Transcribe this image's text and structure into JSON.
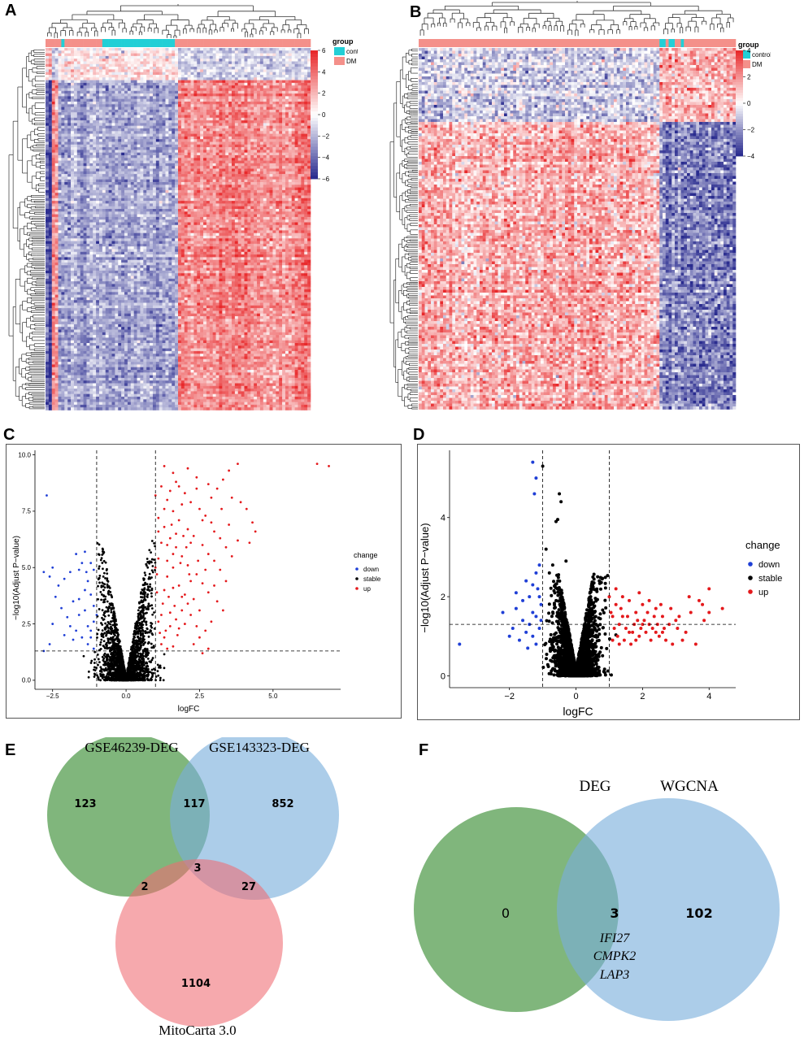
{
  "figure": {
    "panel_letters": [
      "A",
      "B",
      "C",
      "D",
      "E",
      "F"
    ]
  },
  "colors": {
    "heat_low": "#2a2c8f",
    "heat_mid": "#ffffff",
    "heat_high": "#e8292b",
    "control": "#22cfd6",
    "dm": "#f4908a",
    "down": "#1f3fd6",
    "stable": "#000000",
    "up": "#e4191c",
    "venn_green": "#4f9a4a",
    "venn_blue": "#79aedc",
    "venn_red": "#f06b72"
  },
  "heatmap_a": {
    "legend_title": "group",
    "legend_items": [
      "control",
      "DM"
    ],
    "scale_ticks": [
      "6",
      "4",
      "2",
      "0",
      "−2",
      "−4",
      "−6"
    ],
    "group_pattern": [
      0,
      0,
      0,
      0,
      0,
      1,
      0,
      0,
      0,
      0,
      0,
      0,
      0,
      0,
      0,
      0,
      0,
      0,
      1,
      1,
      1,
      1,
      1,
      1,
      1,
      1,
      1,
      1,
      1,
      1,
      1,
      1,
      1,
      1,
      1,
      1,
      1,
      1,
      1,
      1,
      1,
      0,
      0,
      0,
      0,
      0,
      0,
      0,
      0,
      0,
      0,
      0,
      0,
      0,
      0,
      0,
      0,
      0,
      0,
      0,
      0,
      0,
      0,
      0,
      0,
      0,
      0,
      0,
      0,
      0,
      0,
      0,
      0,
      0,
      0,
      0,
      0,
      0,
      0,
      0,
      0,
      0,
      0,
      0
    ]
  },
  "heatmap_b": {
    "legend_title": "group",
    "legend_items": [
      "control",
      "DM"
    ],
    "scale_ticks": [
      "4",
      "2",
      "0",
      "−2",
      "−4"
    ],
    "group_pattern": [
      0,
      0,
      0,
      0,
      0,
      0,
      0,
      0,
      0,
      0,
      0,
      0,
      0,
      0,
      0,
      0,
      0,
      0,
      0,
      0,
      0,
      0,
      0,
      0,
      0,
      0,
      0,
      0,
      0,
      0,
      0,
      0,
      0,
      0,
      0,
      0,
      0,
      0,
      0,
      0,
      0,
      0,
      0,
      0,
      0,
      0,
      0,
      0,
      0,
      0,
      0,
      0,
      0,
      0,
      0,
      0,
      0,
      0,
      0,
      0,
      0,
      0,
      0,
      0,
      0,
      0,
      0,
      0,
      0,
      0,
      0,
      0,
      0,
      0,
      0,
      0,
      0,
      0,
      0,
      1,
      1,
      0,
      1,
      1,
      0,
      0,
      1,
      0,
      0,
      0,
      0,
      0,
      0,
      0,
      0,
      0,
      0,
      0,
      0,
      0,
      0,
      0,
      0,
      0
    ]
  },
  "chart_data": [
    {
      "type": "scatter",
      "panel": "C",
      "title": "",
      "xlabel": "logFC",
      "ylabel": "−log10(Adjust P−value)",
      "xlim": [
        -3.1,
        7.3
      ],
      "ylim": [
        -0.4,
        10.2
      ],
      "x_ticks": [
        -2.5,
        0.0,
        2.5,
        5.0
      ],
      "x_tick_labels": [
        "−2.5",
        "0.0",
        "2.5",
        "5.0"
      ],
      "y_ticks": [
        0.0,
        2.5,
        5.0,
        7.5,
        10.0
      ],
      "y_tick_labels": [
        "0.0",
        "2.5",
        "5.0",
        "7.5",
        "10.0"
      ],
      "v_thresholds": [
        -1,
        1
      ],
      "h_threshold": 1.3,
      "legend_title": "change",
      "legend": [
        "down",
        "stable",
        "up"
      ],
      "stable_cloud": {
        "count": 2400,
        "spread": 1.05,
        "ymax": 6.2
      },
      "down_points": [
        [
          -2.7,
          8.2
        ],
        [
          -2.8,
          4.8
        ],
        [
          -2.5,
          5.0
        ],
        [
          -2.6,
          4.6
        ],
        [
          -2.3,
          4.2
        ],
        [
          -2.1,
          4.5
        ],
        [
          -1.9,
          4.8
        ],
        [
          -1.7,
          5.6
        ],
        [
          -1.6,
          4.9
        ],
        [
          -1.4,
          5.7
        ],
        [
          -1.5,
          5.2
        ],
        [
          -1.3,
          4.4
        ],
        [
          -1.2,
          5.2
        ],
        [
          -1.1,
          4.9
        ],
        [
          -2.4,
          3.7
        ],
        [
          -2.2,
          3.2
        ],
        [
          -2.0,
          2.8
        ],
        [
          -1.8,
          3.5
        ],
        [
          -1.6,
          2.9
        ],
        [
          -1.4,
          3.1
        ],
        [
          -1.3,
          2.4
        ],
        [
          -1.2,
          3.8
        ],
        [
          -1.1,
          2.6
        ],
        [
          -1.7,
          2.2
        ],
        [
          -1.5,
          1.9
        ],
        [
          -1.3,
          1.6
        ],
        [
          -1.2,
          1.9
        ],
        [
          -1.1,
          1.4
        ],
        [
          -2.6,
          1.6
        ],
        [
          -2.8,
          1.3
        ],
        [
          -2.5,
          2.5
        ],
        [
          -1.9,
          2.4
        ],
        [
          -1.6,
          3.6
        ],
        [
          -1.4,
          4.0
        ],
        [
          -1.2,
          2.2
        ],
        [
          -1.1,
          3.3
        ],
        [
          -1.0,
          2.9
        ],
        [
          -1.8,
          1.8
        ],
        [
          -2.1,
          2.0
        ],
        [
          -1.35,
          4.8
        ]
      ],
      "up_points": [
        [
          6.5,
          9.6
        ],
        [
          6.9,
          9.5
        ],
        [
          3.5,
          9.3
        ],
        [
          3.8,
          9.6
        ],
        [
          2.1,
          9.4
        ],
        [
          2.4,
          9.0
        ],
        [
          2.8,
          8.7
        ],
        [
          3.1,
          8.5
        ],
        [
          3.3,
          8.9
        ],
        [
          3.6,
          8.1
        ],
        [
          3.9,
          7.9
        ],
        [
          4.1,
          7.6
        ],
        [
          4.3,
          7.0
        ],
        [
          4.4,
          6.6
        ],
        [
          4.2,
          6.1
        ],
        [
          1.3,
          9.5
        ],
        [
          1.6,
          9.2
        ],
        [
          1.8,
          8.6
        ],
        [
          2.0,
          8.3
        ],
        [
          2.2,
          7.9
        ],
        [
          2.5,
          7.6
        ],
        [
          2.7,
          7.3
        ],
        [
          2.9,
          7.0
        ],
        [
          3.0,
          6.6
        ],
        [
          3.2,
          6.3
        ],
        [
          3.4,
          5.9
        ],
        [
          1.4,
          8.0
        ],
        [
          1.6,
          7.5
        ],
        [
          1.8,
          7.1
        ],
        [
          2.1,
          6.7
        ],
        [
          2.3,
          6.4
        ],
        [
          2.6,
          6.0
        ],
        [
          2.8,
          5.6
        ],
        [
          3.0,
          5.3
        ],
        [
          3.2,
          4.9
        ],
        [
          1.3,
          6.8
        ],
        [
          1.5,
          6.3
        ],
        [
          1.7,
          5.9
        ],
        [
          1.9,
          5.5
        ],
        [
          2.1,
          5.1
        ],
        [
          2.4,
          4.7
        ],
        [
          2.6,
          4.3
        ],
        [
          2.8,
          3.9
        ],
        [
          3.1,
          3.5
        ],
        [
          3.3,
          3.1
        ],
        [
          2.9,
          2.6
        ],
        [
          2.7,
          2.2
        ],
        [
          2.5,
          1.9
        ],
        [
          2.3,
          1.6
        ],
        [
          2.6,
          1.2
        ],
        [
          2.8,
          1.4
        ],
        [
          1.2,
          1.6
        ],
        [
          1.4,
          1.4
        ],
        [
          1.6,
          1.5
        ],
        [
          1.5,
          2.4
        ],
        [
          1.7,
          2.7
        ],
        [
          1.9,
          3.1
        ],
        [
          2.1,
          3.4
        ],
        [
          1.2,
          2.9
        ],
        [
          1.3,
          4.0
        ],
        [
          1.4,
          4.6
        ],
        [
          1.6,
          5.0
        ],
        [
          1.8,
          4.2
        ],
        [
          2.0,
          3.8
        ],
        [
          2.2,
          4.4
        ],
        [
          1.1,
          5.4
        ],
        [
          1.2,
          6.1
        ],
        [
          1.1,
          7.2
        ],
        [
          1.3,
          7.6
        ],
        [
          1.5,
          8.4
        ],
        [
          1.7,
          8.8
        ],
        [
          1.9,
          7.8
        ],
        [
          2.4,
          8.5
        ],
        [
          2.6,
          7.1
        ],
        [
          2.2,
          6.1
        ],
        [
          1.25,
          3.4
        ],
        [
          1.45,
          3.7
        ],
        [
          1.65,
          3.3
        ],
        [
          1.35,
          2.2
        ],
        [
          1.15,
          2.1
        ],
        [
          1.75,
          2.0
        ],
        [
          1.05,
          3.9
        ],
        [
          1.05,
          4.7
        ],
        [
          1.1,
          6.6
        ],
        [
          1.55,
          6.9
        ],
        [
          2.05,
          5.9
        ],
        [
          2.45,
          5.3
        ],
        [
          1.95,
          6.4
        ],
        [
          1.85,
          5.2
        ],
        [
          2.15,
          4.7
        ],
        [
          1.4,
          5.3
        ],
        [
          1.6,
          4.1
        ],
        [
          2.3,
          3.6
        ],
        [
          2.5,
          3.1
        ],
        [
          2.0,
          2.5
        ],
        [
          1.8,
          2.3
        ],
        [
          3.0,
          4.2
        ],
        [
          3.4,
          4.4
        ],
        [
          2.7,
          4.9
        ],
        [
          3.6,
          5.5
        ],
        [
          3.8,
          6.2
        ],
        [
          1.7,
          6.5
        ],
        [
          1.2,
          8.6
        ],
        [
          1.0,
          8.2
        ],
        [
          2.9,
          8.1
        ],
        [
          3.25,
          7.6
        ],
        [
          3.5,
          6.9
        ],
        [
          1.3,
          1.9
        ],
        [
          1.5,
          3.0
        ],
        [
          1.9,
          3.7
        ],
        [
          2.2,
          2.9
        ],
        [
          2.4,
          2.4
        ],
        [
          1.1,
          2.6
        ],
        [
          1.0,
          5.0
        ],
        [
          1.6,
          5.6
        ],
        [
          1.4,
          6.0
        ]
      ]
    },
    {
      "type": "scatter",
      "panel": "D",
      "title": "",
      "xlabel": "logFC",
      "ylabel": "−log10(Adjust P−value)",
      "xlim": [
        -3.8,
        4.8
      ],
      "ylim": [
        -0.3,
        5.7
      ],
      "x_ticks": [
        -2,
        0,
        2,
        4
      ],
      "x_tick_labels": [
        "−2",
        "0",
        "2",
        "4"
      ],
      "y_ticks": [
        0,
        2,
        4
      ],
      "y_tick_labels": [
        "0",
        "2",
        "4"
      ],
      "v_thresholds": [
        -1,
        1
      ],
      "h_threshold": 1.3,
      "legend_title": "change",
      "legend": [
        "down",
        "stable",
        "up"
      ],
      "stable_cloud": {
        "count": 2600,
        "spread": 0.7,
        "ymax": 2.6
      },
      "stable_extra": [
        [
          -1.0,
          5.3
        ],
        [
          -0.5,
          4.6
        ],
        [
          -0.45,
          4.4
        ],
        [
          -0.6,
          3.9
        ],
        [
          -0.55,
          3.95
        ],
        [
          -0.9,
          3.2
        ],
        [
          -0.3,
          2.9
        ],
        [
          0.5,
          2.3
        ],
        [
          0.7,
          2.4
        ],
        [
          -0.7,
          2.8
        ],
        [
          -0.8,
          2.6
        ]
      ],
      "down_points": [
        [
          -1.3,
          5.4
        ],
        [
          -1.2,
          5.0
        ],
        [
          -1.25,
          4.6
        ],
        [
          -1.1,
          2.8
        ],
        [
          -1.2,
          2.6
        ],
        [
          -1.3,
          2.3
        ],
        [
          -1.5,
          2.4
        ],
        [
          -1.4,
          2.0
        ],
        [
          -1.1,
          2.0
        ],
        [
          -1.6,
          1.9
        ],
        [
          -1.8,
          1.7
        ],
        [
          -1.3,
          1.6
        ],
        [
          -1.2,
          1.5
        ],
        [
          -1.6,
          1.4
        ],
        [
          -1.4,
          1.3
        ],
        [
          -1.9,
          1.2
        ],
        [
          -2.0,
          1.0
        ],
        [
          -1.5,
          1.1
        ],
        [
          -1.3,
          1.0
        ],
        [
          -1.7,
          0.9
        ],
        [
          -1.2,
          0.8
        ],
        [
          -1.1,
          1.2
        ],
        [
          -1.05,
          1.8
        ],
        [
          -1.15,
          2.2
        ],
        [
          -1.8,
          2.1
        ],
        [
          -2.2,
          1.6
        ],
        [
          -3.5,
          0.8
        ],
        [
          -1.45,
          0.7
        ],
        [
          -1.05,
          1.4
        ]
      ],
      "up_points": [
        [
          4.0,
          2.2
        ],
        [
          4.4,
          1.7
        ],
        [
          3.7,
          1.9
        ],
        [
          3.8,
          1.8
        ],
        [
          3.4,
          2.0
        ],
        [
          3.1,
          1.5
        ],
        [
          3.0,
          1.4
        ],
        [
          2.8,
          1.3
        ],
        [
          2.6,
          1.5
        ],
        [
          2.4,
          1.7
        ],
        [
          2.2,
          1.9
        ],
        [
          2.0,
          1.8
        ],
        [
          1.8,
          1.6
        ],
        [
          1.6,
          1.9
        ],
        [
          1.4,
          2.0
        ],
        [
          1.2,
          1.8
        ],
        [
          1.1,
          1.5
        ],
        [
          1.3,
          1.3
        ],
        [
          1.5,
          1.2
        ],
        [
          1.7,
          1.1
        ],
        [
          1.9,
          1.0
        ],
        [
          2.1,
          1.1
        ],
        [
          2.3,
          1.2
        ],
        [
          2.5,
          1.0
        ],
        [
          2.7,
          0.9
        ],
        [
          2.9,
          0.8
        ],
        [
          3.2,
          0.9
        ],
        [
          3.6,
          0.8
        ],
        [
          4.0,
          1.6
        ],
        [
          3.3,
          1.1
        ],
        [
          1.2,
          2.2
        ],
        [
          1.0,
          2.0
        ],
        [
          1.05,
          1.6
        ],
        [
          1.25,
          1.0
        ],
        [
          1.45,
          0.9
        ],
        [
          1.65,
          0.8
        ],
        [
          1.85,
          1.4
        ],
        [
          2.05,
          1.4
        ],
        [
          2.25,
          0.9
        ],
        [
          2.45,
          1.3
        ],
        [
          2.65,
          1.2
        ],
        [
          2.85,
          1.7
        ],
        [
          3.45,
          1.6
        ],
        [
          1.35,
          1.7
        ],
        [
          1.55,
          1.5
        ],
        [
          1.75,
          1.3
        ],
        [
          1.95,
          1.2
        ],
        [
          2.15,
          1.6
        ],
        [
          2.35,
          1.5
        ],
        [
          1.15,
          1.2
        ],
        [
          1.4,
          1.5
        ],
        [
          1.6,
          1.1
        ],
        [
          1.8,
          0.9
        ],
        [
          2.0,
          1.3
        ],
        [
          2.2,
          1.3
        ],
        [
          2.4,
          1.1
        ],
        [
          2.6,
          1.1
        ],
        [
          1.3,
          0.8
        ],
        [
          1.1,
          0.9
        ],
        [
          1.9,
          2.1
        ],
        [
          2.55,
          1.8
        ],
        [
          3.05,
          1.2
        ],
        [
          3.85,
          1.4
        ]
      ]
    }
  ],
  "venn_e": {
    "labels": [
      "GSE46239-DEG",
      "GSE143323-DEG",
      "MitoCarta 3.0"
    ],
    "counts": {
      "a_only": "123",
      "b_only": "852",
      "c_only": "1104",
      "ab": "117",
      "ac": "2",
      "bc": "27",
      "abc": "3"
    }
  },
  "venn_f": {
    "labels": [
      "DEG",
      "WGCNA"
    ],
    "counts": {
      "a_only": "0",
      "b_only": "102",
      "ab": "3"
    },
    "genes": [
      "IFI27",
      "CMPK2",
      "LAP3"
    ]
  }
}
